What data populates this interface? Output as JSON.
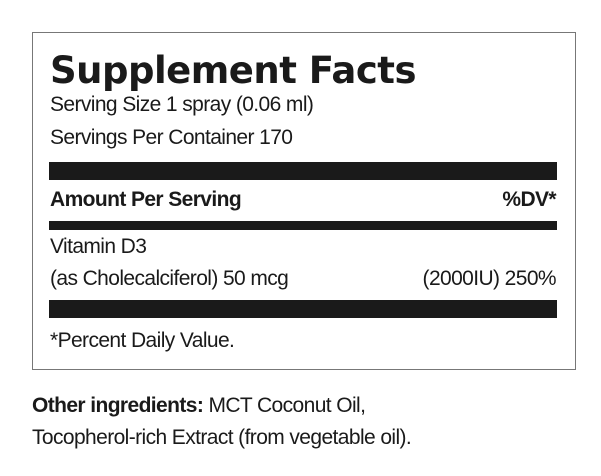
{
  "label": {
    "title": "Supplement Facts",
    "serving_size": "Serving Size 1 spray (0.06 ml)",
    "servings_per_container": "Servings Per Container 170",
    "amount_header": "Amount Per Serving",
    "dv_header": "%DV*",
    "nutrients": [
      {
        "name": "Vitamin D3",
        "detail": "(as Cholecalciferol) 50 mcg",
        "dv": "(2000IU) 250%"
      }
    ],
    "footnote": "*Percent Daily Value."
  },
  "other_ingredients": {
    "label": "Other ingredients:",
    "line1": " MCT Coconut Oil,",
    "line2": "Tocopherol-rich Extract (from vegetable oil)."
  }
}
